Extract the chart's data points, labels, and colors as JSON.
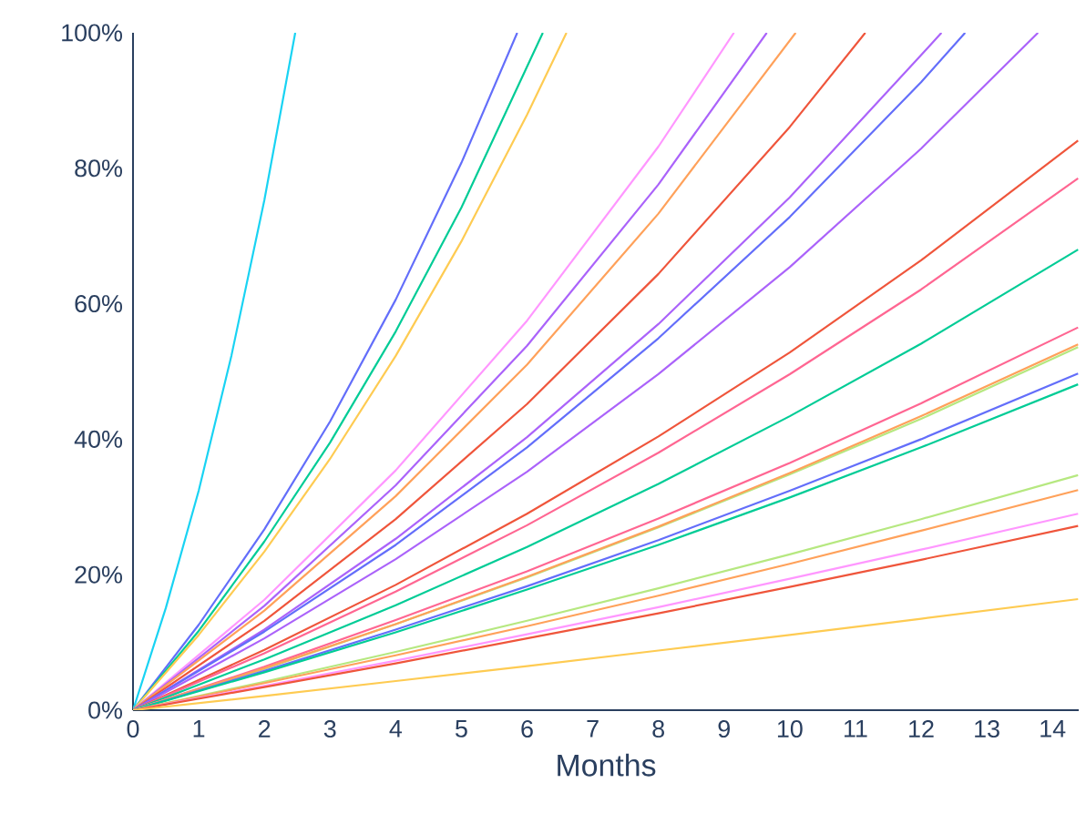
{
  "chart_data": {
    "type": "line",
    "xlabel": "Months",
    "xlim": [
      0,
      14.4
    ],
    "xticks": [
      0,
      1,
      2,
      3,
      4,
      5,
      6,
      7,
      8,
      9,
      10,
      11,
      12,
      13,
      14
    ],
    "ylim": [
      0,
      100
    ],
    "yticks": [
      {
        "value": 0,
        "label": "0%"
      },
      {
        "value": 20,
        "label": "20%"
      },
      {
        "value": 40,
        "label": "40%"
      },
      {
        "value": 60,
        "label": "60%"
      },
      {
        "value": 80,
        "label": "80%"
      },
      {
        "value": 100,
        "label": "100%"
      }
    ],
    "grid": false,
    "series": [
      {
        "color": "#19d3f3",
        "x": [
          0,
          0.5,
          1,
          1.5,
          2,
          2.47
        ],
        "values": [
          0,
          15.1,
          32.4,
          52.4,
          75.3,
          100
        ]
      },
      {
        "color": "#636efa",
        "x": [
          0,
          1,
          2,
          3,
          4,
          5,
          5.85
        ],
        "values": [
          0,
          12.6,
          26.7,
          42.6,
          60.6,
          80.8,
          100
        ]
      },
      {
        "color": "#00cc96",
        "x": [
          0,
          1,
          2,
          3,
          4,
          5,
          6.24
        ],
        "values": [
          0,
          11.7,
          24.9,
          39.5,
          55.9,
          74.2,
          100
        ]
      },
      {
        "color": "#fecb52",
        "x": [
          0,
          1,
          2,
          3,
          4,
          5,
          6,
          6.6
        ],
        "values": [
          0,
          11.1,
          23.4,
          37.1,
          52.3,
          69.2,
          87.9,
          100
        ]
      },
      {
        "color": "#ff97ff",
        "x": [
          0,
          2,
          4,
          6,
          8,
          9.15
        ],
        "values": [
          0,
          16.3,
          35.4,
          57.5,
          83.2,
          100
        ]
      },
      {
        "color": "#ab63fa",
        "x": [
          0,
          2,
          4,
          6,
          8,
          9.65
        ],
        "values": [
          0,
          15.4,
          33.2,
          53.8,
          77.6,
          100
        ]
      },
      {
        "color": "#ffa15a",
        "x": [
          0,
          2,
          4,
          6,
          8,
          10.09
        ],
        "values": [
          0,
          14.7,
          31.6,
          51.0,
          73.3,
          100
        ]
      },
      {
        "color": "#ef553b",
        "x": [
          0,
          2,
          4,
          6,
          8,
          10,
          11.15
        ],
        "values": [
          0,
          13.2,
          28.2,
          45.2,
          64.4,
          86.1,
          100
        ]
      },
      {
        "color": "#ab63fa",
        "x": [
          0,
          2,
          4,
          6,
          8,
          10,
          12,
          12.31
        ],
        "values": [
          0,
          11.9,
          25.3,
          40.3,
          57.0,
          75.7,
          96.7,
          100
        ]
      },
      {
        "color": "#636efa",
        "x": [
          0,
          2,
          4,
          6,
          8,
          10,
          12,
          12.67
        ],
        "values": [
          0,
          11.6,
          24.4,
          38.8,
          54.9,
          72.8,
          92.7,
          100
        ]
      },
      {
        "color": "#ab63fa",
        "x": [
          0,
          2,
          4,
          6,
          8,
          10,
          12,
          13.78
        ],
        "values": [
          0,
          10.6,
          22.3,
          35.2,
          49.6,
          65.4,
          82.9,
          100
        ]
      },
      {
        "color": "#ef553b",
        "x": [
          0,
          2,
          4,
          6,
          8,
          10,
          12,
          14.39
        ],
        "values": [
          0,
          8.9,
          18.5,
          29.0,
          40.4,
          52.8,
          66.4,
          84.1
        ]
      },
      {
        "color": "#ff6692",
        "x": [
          0,
          2,
          4,
          6,
          8,
          10,
          12,
          14.39
        ],
        "values": [
          0,
          8.4,
          17.5,
          27.3,
          38.0,
          49.6,
          62.1,
          78.5
        ]
      },
      {
        "color": "#00cc96",
        "x": [
          0,
          2,
          4,
          6,
          8,
          10,
          12,
          14.39
        ],
        "values": [
          0,
          7.5,
          15.5,
          24.1,
          33.4,
          43.4,
          54.1,
          68.0
        ]
      },
      {
        "color": "#ff6692",
        "x": [
          0,
          2,
          4,
          6,
          8,
          10,
          12,
          14.39
        ],
        "values": [
          0,
          6.4,
          13.3,
          20.5,
          28.3,
          36.5,
          45.3,
          56.5
        ]
      },
      {
        "color": "#b6e880",
        "x": [
          0,
          2,
          4,
          6,
          8,
          10,
          12,
          14.39
        ],
        "values": [
          0,
          6.1,
          12.7,
          19.6,
          27.0,
          34.8,
          43.0,
          53.6
        ]
      },
      {
        "color": "#ffa15a",
        "x": [
          0,
          2,
          4,
          6,
          8,
          10,
          12,
          14.39
        ],
        "values": [
          0,
          6.2,
          12.7,
          19.7,
          27.1,
          35.0,
          43.4,
          54.0
        ]
      },
      {
        "color": "#636efa",
        "x": [
          0,
          2,
          4,
          6,
          8,
          10,
          12,
          14.39
        ],
        "values": [
          0,
          5.8,
          11.9,
          18.3,
          25.1,
          32.4,
          40.0,
          49.7
        ]
      },
      {
        "color": "#00cc96",
        "x": [
          0,
          2,
          4,
          6,
          8,
          10,
          12,
          14.39
        ],
        "values": [
          0,
          5.6,
          11.5,
          17.8,
          24.4,
          31.4,
          38.8,
          48.1
        ]
      },
      {
        "color": "#b6e880",
        "x": [
          0,
          2,
          4,
          6,
          8,
          10,
          12,
          14.39
        ],
        "values": [
          0,
          4.2,
          8.6,
          13.2,
          18.0,
          23.0,
          28.2,
          34.7
        ]
      },
      {
        "color": "#ffa15a",
        "x": [
          0,
          2,
          4,
          6,
          8,
          10,
          12,
          14.39
        ],
        "values": [
          0,
          4.0,
          8.1,
          12.4,
          16.9,
          21.6,
          26.5,
          32.5
        ]
      },
      {
        "color": "#ff97ff",
        "x": [
          0,
          2,
          4,
          6,
          8,
          10,
          12,
          14.39
        ],
        "values": [
          0,
          3.6,
          7.3,
          11.2,
          15.2,
          19.4,
          23.7,
          29.0
        ]
      },
      {
        "color": "#ef553b",
        "x": [
          0,
          2,
          4,
          6,
          8,
          10,
          12,
          14.39
        ],
        "values": [
          0,
          3.4,
          6.9,
          10.6,
          14.3,
          18.2,
          22.2,
          27.2
        ]
      },
      {
        "color": "#fecb52",
        "x": [
          0,
          2,
          4,
          6,
          8,
          10,
          12,
          14.39
        ],
        "values": [
          0,
          2.1,
          4.3,
          6.5,
          8.8,
          11.1,
          13.5,
          16.4
        ]
      }
    ]
  }
}
